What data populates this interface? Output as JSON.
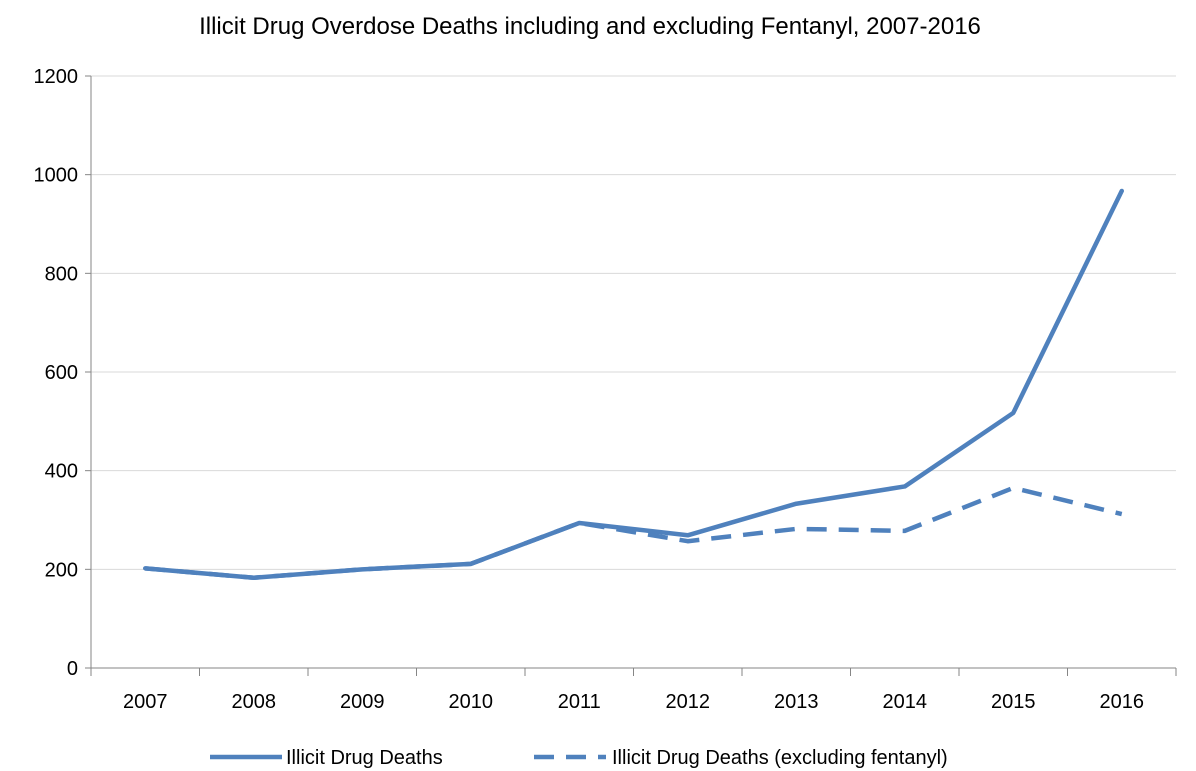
{
  "chart_data": {
    "type": "line",
    "title": "Illicit Drug Overdose Deaths including and excluding Fentanyl, 2007-2016",
    "xlabel": "",
    "ylabel": "",
    "categories": [
      "2007",
      "2008",
      "2009",
      "2010",
      "2011",
      "2012",
      "2013",
      "2014",
      "2015",
      "2016"
    ],
    "ylim": [
      0,
      1200
    ],
    "yticks": [
      0,
      200,
      400,
      600,
      800,
      1000,
      1200
    ],
    "grid": "horizontal",
    "legend_position": "bottom",
    "series": [
      {
        "name": "Illicit Drug Deaths",
        "style": "solid",
        "color": "#4F81BD",
        "values": [
          202,
          183,
          200,
          211,
          294,
          269,
          333,
          368,
          517,
          967
        ]
      },
      {
        "name": "Illicit Drug Deaths (excluding fentanyl)",
        "style": "dashed",
        "color": "#4F81BD",
        "values": [
          202,
          183,
          200,
          211,
          294,
          257,
          282,
          278,
          365,
          312
        ]
      }
    ]
  },
  "colors": {
    "gridline": "#D9D9D9",
    "axis": "#868686"
  }
}
